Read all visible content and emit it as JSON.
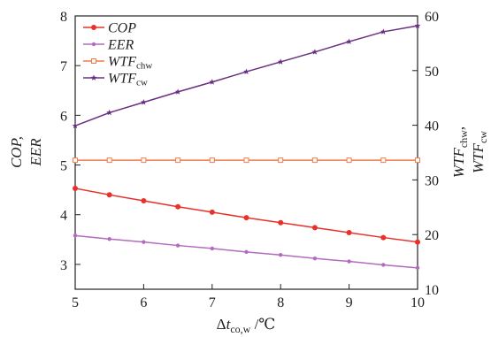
{
  "chart_data": {
    "type": "line",
    "x": [
      5,
      5.5,
      6,
      6.5,
      7,
      7.5,
      8,
      8.5,
      9,
      9.5,
      10
    ],
    "xlim": [
      5,
      10
    ],
    "xticks": [
      "5",
      "6",
      "7",
      "8",
      "9",
      "10"
    ],
    "xlabel": {
      "prefix": "Δ",
      "main": "t",
      "sub": "co,w",
      "suffix": " /℃"
    },
    "y_left": {
      "lim": [
        2.5,
        8
      ],
      "ticks": [
        "3",
        "4",
        "5",
        "6",
        "7",
        "8"
      ],
      "label_lines": [
        "COP,",
        "EER"
      ]
    },
    "y_right": {
      "lim": [
        10,
        60
      ],
      "ticks": [
        "10",
        "20",
        "30",
        "40",
        "50",
        "60"
      ],
      "label_lines": [
        {
          "main": "WTF",
          "sub": "chw",
          "suffix": ","
        },
        {
          "main": "WTF",
          "sub": "cw",
          "suffix": ""
        }
      ]
    },
    "legend_position": "top-left",
    "series": [
      {
        "name": "COP",
        "name_main": "COP",
        "name_sub": "",
        "axis": "left",
        "color": "#e8312a",
        "marker": "circle",
        "values": [
          4.53,
          4.4,
          4.28,
          4.16,
          4.05,
          3.94,
          3.84,
          3.74,
          3.64,
          3.54,
          3.45
        ]
      },
      {
        "name": "EER",
        "name_main": "EER",
        "name_sub": "",
        "axis": "left",
        "color": "#b36ac0",
        "marker": "circle-small",
        "values": [
          3.58,
          3.51,
          3.45,
          3.38,
          3.32,
          3.25,
          3.19,
          3.12,
          3.06,
          2.99,
          2.93
        ]
      },
      {
        "name": "WTFchw",
        "name_main": "WTF",
        "name_sub": "chw",
        "axis": "right",
        "color": "#f07a4a",
        "marker": "square-open",
        "values": [
          33.6,
          33.6,
          33.6,
          33.6,
          33.6,
          33.6,
          33.6,
          33.6,
          33.6,
          33.6,
          33.6
        ]
      },
      {
        "name": "WTFcw",
        "name_main": "WTF",
        "name_sub": "cw",
        "axis": "right",
        "color": "#6a2e82",
        "marker": "star",
        "values": [
          39.9,
          42.3,
          44.2,
          46.1,
          47.9,
          49.8,
          51.6,
          53.4,
          55.3,
          57.1,
          58.2
        ]
      }
    ]
  }
}
